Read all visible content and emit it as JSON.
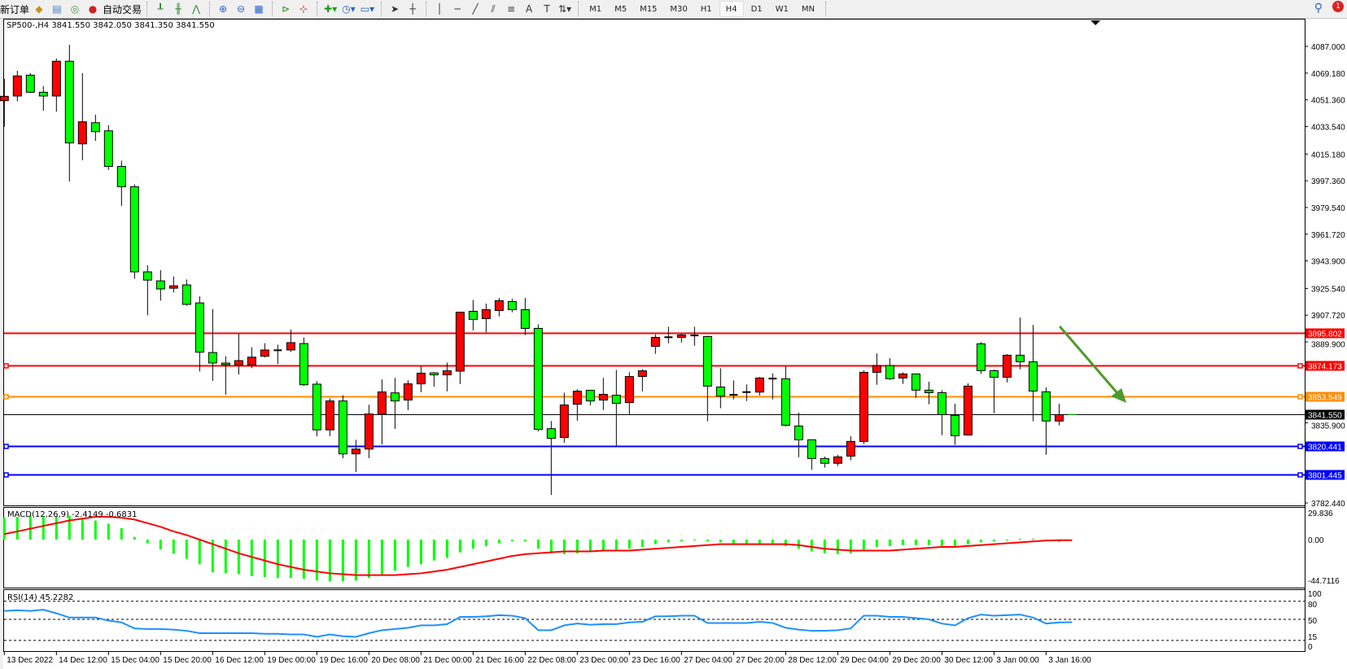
{
  "toolbar": {
    "new_order": "新订单",
    "auto_trading": "自动交易",
    "timeframes": [
      "M1",
      "M5",
      "M15",
      "M30",
      "H1",
      "H4",
      "D1",
      "W1",
      "MN"
    ],
    "active_timeframe": "H4",
    "text_tool": "A",
    "notification_count": "1"
  },
  "chart_header": "SP500-,H4  3841.550 3842.050 3841.350 3841.550",
  "macd_label": "MACD(12,26,9) -2.4149 -0.6831",
  "rsi_label": "RSI(14) 45.2282",
  "colors": {
    "bull": "#ff0000",
    "bear": "#00ff00",
    "macd_hist": "#00ff00",
    "signal": "#ff0000",
    "rsi": "#1e90ff",
    "arrow": "#4e9a2e"
  },
  "chart_data": {
    "type": "candlestick",
    "symbol": "SP500-",
    "timeframe": "H4",
    "ylim": [
      3782.44,
      4087.0
    ],
    "y_ticks": [
      "4087.000",
      "4069.180",
      "4051.360",
      "4033.540",
      "4015.180",
      "3997.360",
      "3979.540",
      "3961.720",
      "3943.900",
      "3925.540",
      "3907.720",
      "3889.900",
      "3835.900",
      "3782.440"
    ],
    "x_tick_labels": [
      "13 Dec 2022",
      "14 Dec 12:00",
      "15 Dec 04:00",
      "15 Dec 20:00",
      "16 Dec 12:00",
      "19 Dec 00:00",
      "19 Dec 16:00",
      "20 Dec 08:00",
      "21 Dec 00:00",
      "21 Dec 16:00",
      "22 Dec 08:00",
      "23 Dec 00:00",
      "23 Dec 16:00",
      "27 Dec 04:00",
      "27 Dec 20:00",
      "28 Dec 12:00",
      "29 Dec 04:00",
      "29 Dec 20:00",
      "30 Dec 12:00",
      "3 Jan 00:00",
      "3 Jan 16:00"
    ],
    "ohlc": [
      [
        4050.8,
        4065.3,
        4033.4,
        4053.7
      ],
      [
        4053.9,
        4070.7,
        4050.4,
        4067.3
      ],
      [
        4067.8,
        4069.2,
        4055.9,
        4056.4
      ],
      [
        4056.4,
        4060.5,
        4044.1,
        4053.9
      ],
      [
        4053.9,
        4078.9,
        4043.5,
        4077.1
      ],
      [
        4077.1,
        4088.1,
        3996.9,
        4022.6
      ],
      [
        4022.0,
        4069.2,
        4011.0,
        4036.7
      ],
      [
        4036.1,
        4041.5,
        4024.0,
        4030.1
      ],
      [
        4030.7,
        4034.4,
        4004.6,
        4006.9
      ],
      [
        4006.9,
        4010.8,
        3980.6,
        3993.4
      ],
      [
        3993.4,
        3994.9,
        3931.9,
        3936.6
      ],
      [
        3936.6,
        3941.0,
        3907.6,
        3931.1
      ],
      [
        3930.6,
        3937.7,
        3917.4,
        3925.2
      ],
      [
        3925.7,
        3933.5,
        3922.8,
        3927.3
      ],
      [
        3927.9,
        3931.5,
        3914.1,
        3914.9
      ],
      [
        3915.9,
        3920.3,
        3870.2,
        3883.0
      ],
      [
        3882.8,
        3911.8,
        3863.9,
        3875.8
      ],
      [
        3875.8,
        3880.3,
        3854.6,
        3874.7
      ],
      [
        3874.3,
        3895.2,
        3868.1,
        3877.4
      ],
      [
        3874.3,
        3886.3,
        3872.4,
        3879.7
      ],
      [
        3880.3,
        3889.0,
        3879.5,
        3884.5
      ],
      [
        3884.3,
        3888.0,
        3875.1,
        3884.3
      ],
      [
        3884.5,
        3898.1,
        3883.2,
        3889.4
      ],
      [
        3888.8,
        3892.9,
        3860.6,
        3861.3
      ],
      [
        3861.7,
        3863.7,
        3826.9,
        3831.2
      ],
      [
        3831.2,
        3852.3,
        3827.0,
        3850.5
      ],
      [
        3850.5,
        3854.3,
        3812.3,
        3815.2
      ],
      [
        3815.2,
        3824.6,
        3803.0,
        3818.4
      ],
      [
        3818.4,
        3848.0,
        3812.3,
        3841.8
      ],
      [
        3841.6,
        3864.8,
        3821.5,
        3856.5
      ],
      [
        3855.9,
        3865.9,
        3831.9,
        3850.5
      ],
      [
        3851.1,
        3864.3,
        3844.4,
        3861.9
      ],
      [
        3861.9,
        3873.5,
        3856.3,
        3869.0
      ],
      [
        3869.2,
        3869.7,
        3860.1,
        3867.9
      ],
      [
        3867.9,
        3876.1,
        3856.9,
        3870.6
      ],
      [
        3870.4,
        3909.7,
        3861.7,
        3909.7
      ],
      [
        3910.3,
        3917.9,
        3897.6,
        3904.9
      ],
      [
        3905.4,
        3915.4,
        3896.3,
        3911.4
      ],
      [
        3910.8,
        3919.2,
        3906.9,
        3917.4
      ],
      [
        3916.8,
        3918.6,
        3909.6,
        3911.4
      ],
      [
        3911.4,
        3919.2,
        3894.4,
        3898.9
      ],
      [
        3898.9,
        3901.6,
        3830.2,
        3831.5
      ],
      [
        3832.0,
        3837.1,
        3787.8,
        3825.5
      ],
      [
        3826.1,
        3856.0,
        3822.6,
        3847.8
      ],
      [
        3848.3,
        3858.3,
        3837.3,
        3857.0
      ],
      [
        3857.6,
        3857.6,
        3847.6,
        3850.5
      ],
      [
        3851.1,
        3865.9,
        3844.4,
        3854.9
      ],
      [
        3854.3,
        3871.2,
        3820.6,
        3848.9
      ],
      [
        3849.4,
        3869.7,
        3841.3,
        3866.8
      ],
      [
        3866.8,
        3871.7,
        3856.9,
        3870.6
      ],
      [
        3886.9,
        3894.9,
        3881.9,
        3892.9
      ],
      [
        3893.0,
        3900.0,
        3888.9,
        3892.8
      ],
      [
        3892.9,
        3895.3,
        3889.5,
        3894.5
      ],
      [
        3894.2,
        3900.0,
        3887.3,
        3894.2
      ],
      [
        3893.5,
        3894.0,
        3836.9,
        3860.4
      ],
      [
        3859.8,
        3872.3,
        3845.6,
        3853.7
      ],
      [
        3854.6,
        3864.2,
        3851.5,
        3854.6
      ],
      [
        3856.4,
        3861.5,
        3850.4,
        3856.4
      ],
      [
        3856.4,
        3866.5,
        3854.1,
        3865.8
      ],
      [
        3865.4,
        3868.9,
        3851.5,
        3865.4
      ],
      [
        3865.3,
        3873.6,
        3833.3,
        3834.3
      ],
      [
        3833.8,
        3842.7,
        3813.0,
        3824.6
      ],
      [
        3824.6,
        3824.6,
        3804.5,
        3812.1
      ],
      [
        3812.1,
        3813.4,
        3806.0,
        3808.9
      ],
      [
        3808.9,
        3814.5,
        3807.1,
        3813.2
      ],
      [
        3813.7,
        3826.9,
        3810.9,
        3823.5
      ],
      [
        3823.5,
        3870.9,
        3821.7,
        3869.6
      ],
      [
        3869.6,
        3882.2,
        3861.3,
        3874.1
      ],
      [
        3874.1,
        3879.0,
        3864.5,
        3865.3
      ],
      [
        3865.8,
        3869.6,
        3861.8,
        3868.5
      ],
      [
        3868.5,
        3868.5,
        3852.6,
        3857.7
      ],
      [
        3857.7,
        3863.3,
        3848.3,
        3856.0
      ],
      [
        3856.0,
        3857.7,
        3827.7,
        3841.4
      ],
      [
        3840.9,
        3848.6,
        3821.2,
        3827.3
      ],
      [
        3827.8,
        3862.2,
        3827.3,
        3860.4
      ],
      [
        3888.6,
        3889.8,
        3868.5,
        3870.7
      ],
      [
        3870.7,
        3871.4,
        3842.3,
        3866.3
      ],
      [
        3866.3,
        3881.7,
        3862.9,
        3881.0
      ],
      [
        3881.0,
        3906.1,
        3871.6,
        3876.6
      ],
      [
        3876.6,
        3901.2,
        3836.9,
        3857.1
      ],
      [
        3856.6,
        3859.5,
        3814.6,
        3837.1
      ],
      [
        3837.1,
        3848.6,
        3834.2,
        3841.4
      ],
      [
        3841.55,
        3842.05,
        3841.35,
        3841.55
      ]
    ],
    "levels": [
      {
        "price": "3895.802",
        "color": "#ff0000"
      },
      {
        "price": "3874.173",
        "color": "#ff0000"
      },
      {
        "price": "3853.549",
        "color": "#ff8c00"
      },
      {
        "price": "3841.550",
        "color": "#000000"
      },
      {
        "price": "3820.441",
        "color": "#0000ff"
      },
      {
        "price": "3801.445",
        "color": "#0000ff"
      }
    ],
    "macd": {
      "ylim": [
        -44.7116,
        29.836
      ],
      "y_ticks": [
        "29.836",
        "0.00",
        "-44.7116"
      ],
      "histogram": [
        24,
        25,
        26,
        26,
        26,
        26,
        24,
        21,
        17.5,
        12.5,
        3,
        -4,
        -10.7,
        -15.5,
        -21,
        -27,
        -36,
        -37,
        -38,
        -40,
        -41,
        -42,
        -42,
        -43,
        -45,
        -46,
        -46,
        -45,
        -42,
        -38,
        -34,
        -30,
        -27,
        -23,
        -20,
        -14,
        -10,
        -7,
        -4,
        -2,
        -2,
        -10,
        -15,
        -16,
        -15,
        -13,
        -12,
        -11,
        -10,
        -8,
        -5,
        -3,
        -2,
        -1,
        -2,
        -3,
        -4,
        -4,
        -4,
        -4,
        -7,
        -10,
        -13,
        -15,
        -16,
        -15,
        -11,
        -8,
        -7,
        -6,
        -6,
        -6,
        -7,
        -7,
        -5,
        -3,
        -2,
        -1,
        1,
        1,
        -1,
        -2.4149,
        -2.4149
      ],
      "signal": [
        6,
        9,
        12,
        15,
        18,
        21,
        23,
        25,
        25,
        24,
        22,
        18,
        14,
        9,
        5,
        0,
        -5,
        -10,
        -15,
        -19,
        -23,
        -27,
        -30,
        -33,
        -35,
        -37,
        -38,
        -39,
        -39,
        -39,
        -39,
        -38,
        -37,
        -35,
        -33,
        -30,
        -27,
        -24,
        -21,
        -18,
        -16,
        -15,
        -14,
        -13,
        -13,
        -13,
        -12,
        -12,
        -12,
        -11,
        -10,
        -9,
        -8,
        -7,
        -6,
        -5,
        -5,
        -5,
        -5,
        -5,
        -5,
        -6,
        -8,
        -10,
        -11,
        -12,
        -12,
        -12,
        -12,
        -11,
        -10,
        -9,
        -8,
        -8,
        -7,
        -6,
        -5,
        -4,
        -3,
        -2,
        -1,
        -0.6831,
        -0.6831
      ]
    },
    "rsi": {
      "ylim": [
        0,
        100
      ],
      "y_ticks": [
        "100",
        "80",
        "50",
        "15",
        "0"
      ],
      "levels": [
        80,
        50,
        15
      ],
      "values": [
        64,
        65,
        64,
        66,
        60,
        53,
        53,
        53,
        48,
        45,
        35,
        34,
        34,
        33,
        31,
        27,
        27,
        27,
        27,
        27,
        26,
        26,
        25,
        25,
        21,
        25,
        22,
        21,
        27,
        32,
        34,
        36,
        40,
        40,
        42,
        54,
        54,
        55,
        57,
        56,
        52,
        32,
        32,
        40,
        43,
        41,
        42,
        42,
        45,
        46,
        55,
        55,
        56,
        56,
        44,
        44,
        44,
        44,
        46,
        44,
        36,
        33,
        31,
        31,
        32,
        35,
        56,
        56,
        54,
        54,
        52,
        50,
        43,
        40,
        52,
        58,
        56,
        57,
        58,
        53,
        43,
        45,
        45.2282
      ]
    }
  }
}
